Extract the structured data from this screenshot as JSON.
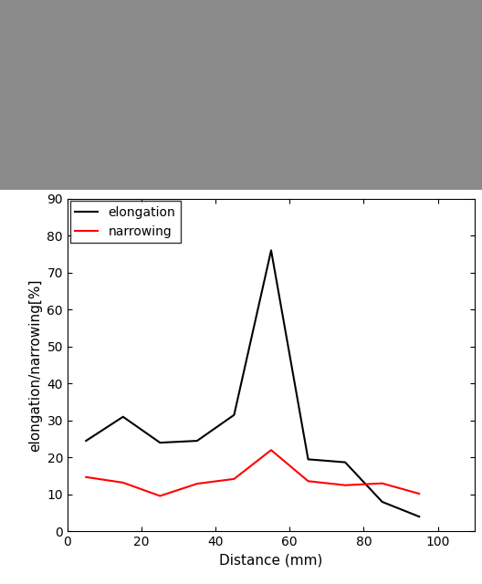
{
  "chart_data": {
    "type": "line",
    "x_label": "Distance (mm)",
    "y_label": "elongation/narrowing[%]",
    "x": [
      5,
      15,
      25,
      35,
      45,
      55,
      65,
      75,
      85,
      95
    ],
    "series": [
      {
        "name": "elongation",
        "color": "#000000",
        "values": [
          24.5,
          31,
          24,
          24.5,
          31.5,
          76,
          19.5,
          18.7,
          8,
          4
        ]
      },
      {
        "name": "narrowing",
        "color": "#ff0000",
        "values": [
          14.7,
          13.2,
          9.6,
          12.9,
          14.2,
          22,
          13.6,
          12.5,
          13,
          10.2
        ]
      }
    ],
    "xlim": [
      0,
      110
    ],
    "xticks": [
      0,
      20,
      40,
      60,
      80,
      100
    ],
    "ylim": [
      0,
      90
    ],
    "yticks": [
      0,
      10,
      20,
      30,
      40,
      50,
      60,
      70,
      80,
      90
    ],
    "grid": false,
    "legend": "upper left"
  }
}
